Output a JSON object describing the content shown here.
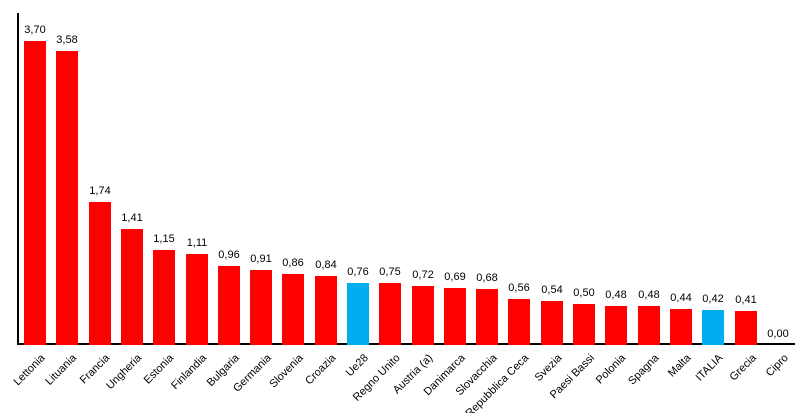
{
  "chart_data": {
    "type": "bar",
    "title": "",
    "xlabel": "",
    "ylabel": "",
    "categories": [
      "Lettonia",
      "Lituania",
      "Francia",
      "Ungheria",
      "Estonia",
      "Finlandia",
      "Bulgaria",
      "Germania",
      "Slovenia",
      "Croazia",
      "Ue28",
      "Regno Unito",
      "Austria (a)",
      "Danimarca",
      "Slovacchia",
      "Repubblica Ceca",
      "Svezia",
      "Paesi Bassi",
      "Polonia",
      "Spagna",
      "Malta",
      "ITALIA",
      "Grecia",
      "Cipro"
    ],
    "values": [
      3.7,
      3.58,
      1.74,
      1.41,
      1.15,
      1.11,
      0.96,
      0.91,
      0.86,
      0.84,
      0.76,
      0.75,
      0.72,
      0.69,
      0.68,
      0.56,
      0.54,
      0.5,
      0.48,
      0.48,
      0.44,
      0.42,
      0.41,
      0.0
    ],
    "value_labels": [
      "3,70",
      "3,58",
      "1,74",
      "1,41",
      "1,15",
      "1,11",
      "0,96",
      "0,91",
      "0,86",
      "0,84",
      "0,76",
      "0,75",
      "0,72",
      "0,69",
      "0,68",
      "0,56",
      "0,54",
      "0,50",
      "0,48",
      "0,48",
      "0,44",
      "0,42",
      "0,41",
      "0,00"
    ],
    "highlighted_categories": [
      "Ue28",
      "ITALIA"
    ],
    "colors": {
      "bar_default": "#FF0000",
      "bar_highlight": "#00AEEF",
      "axis": "#000000",
      "text": "#000000"
    },
    "ylim": [
      0,
      4
    ],
    "grid": false,
    "legend": false
  }
}
